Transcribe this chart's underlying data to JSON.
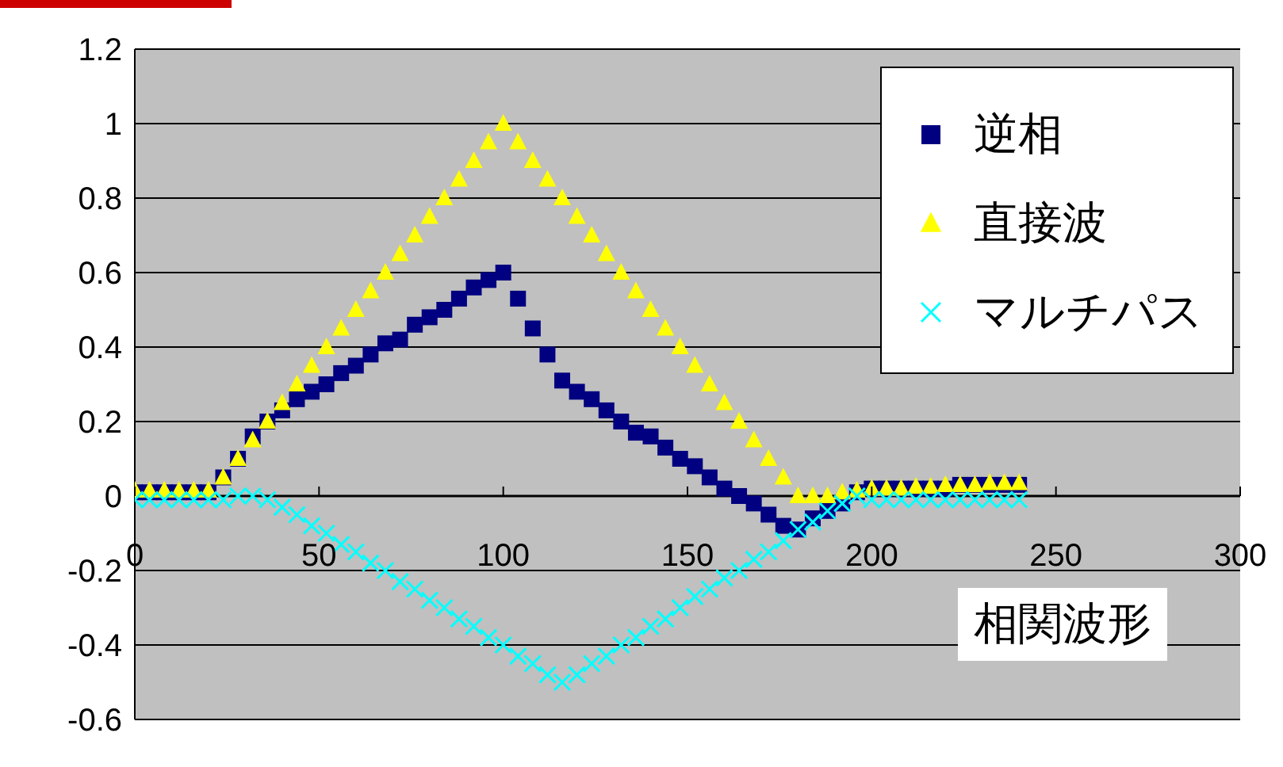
{
  "chart_data": {
    "type": "scatter",
    "xlabel": "相関波形",
    "x": [
      0,
      4,
      8,
      12,
      16,
      20,
      24,
      28,
      32,
      36,
      40,
      44,
      48,
      52,
      56,
      60,
      64,
      68,
      72,
      76,
      80,
      84,
      88,
      92,
      96,
      100,
      104,
      108,
      112,
      116,
      120,
      124,
      128,
      132,
      136,
      140,
      144,
      148,
      152,
      156,
      160,
      164,
      168,
      172,
      176,
      180,
      184,
      188,
      192,
      196,
      200,
      204,
      208,
      212,
      216,
      220,
      224,
      228,
      232,
      236,
      240
    ],
    "series": [
      {
        "name": "逆相",
        "color": "#000080",
        "marker": "square",
        "values": [
          0.01,
          0.01,
          0.01,
          0.01,
          0.01,
          0.01,
          0.05,
          0.1,
          0.16,
          0.2,
          0.23,
          0.26,
          0.28,
          0.3,
          0.33,
          0.35,
          0.38,
          0.41,
          0.42,
          0.46,
          0.48,
          0.5,
          0.53,
          0.56,
          0.58,
          0.6,
          0.53,
          0.45,
          0.38,
          0.31,
          0.28,
          0.26,
          0.23,
          0.2,
          0.17,
          0.16,
          0.13,
          0.1,
          0.08,
          0.05,
          0.02,
          0.0,
          -0.02,
          -0.05,
          -0.08,
          -0.09,
          -0.06,
          -0.04,
          -0.02,
          0.01,
          0.02,
          0.02,
          0.02,
          0.02,
          0.02,
          0.02,
          0.03,
          0.03,
          0.03,
          0.03,
          0.03
        ]
      },
      {
        "name": "直接波",
        "color": "#ffff00",
        "marker": "triangle",
        "values": [
          0.015,
          0.015,
          0.015,
          0.015,
          0.015,
          0.015,
          0.05,
          0.1,
          0.15,
          0.2,
          0.25,
          0.3,
          0.35,
          0.4,
          0.45,
          0.5,
          0.55,
          0.6,
          0.65,
          0.7,
          0.75,
          0.8,
          0.85,
          0.9,
          0.95,
          1,
          0.95,
          0.9,
          0.85,
          0.8,
          0.75,
          0.7,
          0.65,
          0.6,
          0.55,
          0.5,
          0.45,
          0.4,
          0.35,
          0.3,
          0.25,
          0.2,
          0.15,
          0.1,
          0.05,
          0,
          0,
          0,
          0.01,
          0.015,
          0.02,
          0.02,
          0.02,
          0.025,
          0.025,
          0.03,
          0.03,
          0.03,
          0.035,
          0.035,
          0.035
        ]
      },
      {
        "name": "マルチパス",
        "color": "#00ffff",
        "marker": "cross",
        "values": [
          -0.01,
          -0.01,
          -0.01,
          -0.01,
          -0.01,
          -0.01,
          -0.01,
          0,
          0,
          -0.01,
          -0.03,
          -0.05,
          -0.08,
          -0.1,
          -0.13,
          -0.15,
          -0.18,
          -0.2,
          -0.23,
          -0.25,
          -0.28,
          -0.3,
          -0.33,
          -0.35,
          -0.38,
          -0.4,
          -0.43,
          -0.45,
          -0.48,
          -0.5,
          -0.48,
          -0.45,
          -0.43,
          -0.4,
          -0.38,
          -0.35,
          -0.33,
          -0.3,
          -0.27,
          -0.25,
          -0.22,
          -0.2,
          -0.17,
          -0.15,
          -0.12,
          -0.09,
          -0.07,
          -0.04,
          -0.02,
          0,
          -0.01,
          -0.01,
          -0.01,
          -0.01,
          -0.01,
          -0.01,
          -0.01,
          -0.01,
          -0.01,
          -0.01,
          -0.01
        ]
      }
    ],
    "xlim": [
      0,
      300
    ],
    "xticks": [
      0,
      50,
      100,
      150,
      200,
      250,
      300
    ],
    "ylim": [
      -0.6,
      1.2
    ],
    "yticks": [
      -0.6,
      -0.4,
      -0.2,
      0,
      0.2,
      0.4,
      0.6,
      0.8,
      1,
      1.2
    ],
    "grid": "y",
    "legend": "top right"
  }
}
